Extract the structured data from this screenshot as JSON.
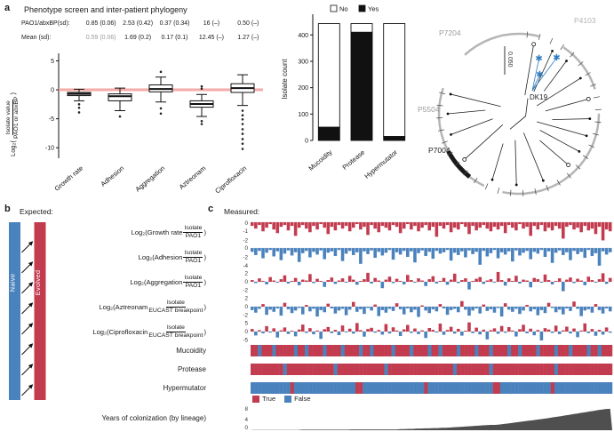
{
  "colors": {
    "red": "#c23b4f",
    "blue": "#4a82bd",
    "pink": "#f2a39e",
    "dark": "#4f4f4f"
  },
  "panels": {
    "a": {
      "label": "a",
      "title": "Phenotype screen and inter-patient phylogeny",
      "stats": {
        "rows": [
          {
            "label": "PAO1/abxBP(sd):",
            "values": [
              "0.85 (0.06)",
              "2.53 (0.42)",
              "0.37 (0.34)",
              "16 (–)",
              "0.50 (–)"
            ],
            "muted": []
          },
          {
            "label": "Mean (sd):",
            "values": [
              "0.59 (0.06)",
              "1.69 (0.2)",
              "0.17 (0.1)",
              "12.45 (–)",
              "1.27 (–)"
            ],
            "muted": [
              0
            ]
          }
        ]
      },
      "tree": {
        "labels": [
          {
            "text": "P7204",
            "color": "#9a9a9a"
          },
          {
            "text": "P4103",
            "color": "#b3b3b3"
          },
          {
            "text": "P5504",
            "color": "#9a9a9a"
          },
          {
            "text": "P7004",
            "color": "#1a1a1a"
          },
          {
            "text": "DK19",
            "color": "#1a1a1a"
          }
        ],
        "scale_label": "0.050",
        "star_color": "#2f7cc0"
      }
    },
    "b": {
      "label": "b",
      "heading": "Expected:",
      "naive": "Naive",
      "evolved": "Evolved",
      "rows": [
        {
          "type": "ratio",
          "prefix": "Log₂(Growth rate ",
          "num": "Isolate",
          "den": "PAO1",
          "suffix": ")"
        },
        {
          "type": "ratio",
          "prefix": "Log₂(Adhesion ",
          "num": "Isolate",
          "den": "PAO1",
          "suffix": ")"
        },
        {
          "type": "ratio",
          "prefix": "Log₂(Aggregation ",
          "num": "Isolate",
          "den": "PAO1",
          "suffix": ")"
        },
        {
          "type": "ratio",
          "prefix": "Log₂(Aztreonam ",
          "num": "Isolate",
          "den": "EUCAST breakpoint",
          "suffix": ")"
        },
        {
          "type": "ratio",
          "prefix": "Log₂(Ciprofloxacin ",
          "num": "Isolate",
          "den": "EUCAST breakpoint",
          "suffix": ")"
        },
        {
          "type": "plain",
          "text": "Mucoidity"
        },
        {
          "type": "plain",
          "text": "Protease"
        },
        {
          "type": "plain",
          "text": "Hypermutator"
        },
        {
          "type": "plain",
          "text": "Years of colonization (by lineage)"
        }
      ]
    },
    "c": {
      "label": "c",
      "heading": "Measured:",
      "legend": {
        "true_label": "True",
        "false_label": "False"
      }
    }
  },
  "chart_data": [
    {
      "name": "phenotype-boxplot",
      "type": "box",
      "ylabel": {
        "prefix": "Log₂(",
        "numerator": "Isolate value",
        "denominator": "PAO1 or abxBP",
        "suffix": ")"
      },
      "categories": [
        "Growth rate",
        "Adhesion",
        "Aggregation",
        "Aztreonam",
        "Ciprofloxacin"
      ],
      "yticks": [
        5,
        0,
        -5,
        -10
      ],
      "ylim": [
        -11.5,
        6.3
      ],
      "refline": {
        "y": 0,
        "color": "#f2a39e"
      },
      "boxes": [
        {
          "lo": -1.9,
          "q1": -1.0,
          "med": -0.7,
          "q3": -0.45,
          "hi": 0.1,
          "outliers": [
            -2.5,
            -3.1,
            -3.9
          ]
        },
        {
          "lo": -3.6,
          "q1": -1.9,
          "med": -1.1,
          "q3": -0.7,
          "hi": 0.3,
          "outliers": [
            -4.6
          ]
        },
        {
          "lo": -2.1,
          "q1": -0.35,
          "med": 0.15,
          "q3": 0.85,
          "hi": 2.2,
          "outliers": [
            -3.2,
            -4.1,
            3.1
          ]
        },
        {
          "lo": -4.6,
          "q1": -3.0,
          "med": -2.45,
          "q3": -1.9,
          "hi": -0.8,
          "outliers": [
            -5.4,
            -5.9,
            0.2,
            0.6
          ]
        },
        {
          "lo": -2.7,
          "q1": -0.45,
          "med": 0.3,
          "q3": 1.05,
          "hi": 2.6,
          "outliers": [
            -3.6,
            -4.4,
            -5.1,
            -5.9,
            -6.8,
            -7.6,
            -8.5,
            -9.3,
            -10.2
          ]
        }
      ]
    },
    {
      "name": "isolate-count",
      "type": "bar",
      "stacked": true,
      "ylabel": "Isolate count",
      "categories": [
        "Mucoidity",
        "Protease",
        "Hypermutator"
      ],
      "legend": [
        "No",
        "Yes"
      ],
      "colors": {
        "No": "#ffffff",
        "Yes": "#111111"
      },
      "yticks": [
        0,
        100,
        200,
        300,
        400
      ],
      "ylim": [
        0,
        465
      ],
      "series": [
        {
          "name": "Yes",
          "values": [
            50,
            410,
            15
          ]
        },
        {
          "name": "No",
          "values": [
            393,
            33,
            428
          ]
        }
      ]
    },
    {
      "name": "measured-tracks",
      "type": "bar-tracks",
      "tracks": [
        {
          "id": "growth-rate",
          "yticks": [
            0,
            -1,
            -2
          ],
          "ylim": [
            0.2,
            -2.35
          ],
          "color_mode": "fixed",
          "color": "#c23b4f",
          "values": [
            -0.4,
            -0.7,
            -0.3,
            -1.0,
            -0.6,
            -0.2,
            -0.8,
            -1.2,
            -0.5,
            -0.3,
            -0.9,
            -0.4,
            -1.5,
            -0.6,
            -0.3,
            -0.7,
            -1.1,
            -0.4,
            -0.8,
            -0.2,
            -0.6,
            -1.3,
            -0.5,
            -0.9,
            -0.3,
            -0.7,
            -0.4,
            -1.0,
            -0.6,
            -0.2,
            -0.8,
            -0.5,
            -1.4,
            -0.3,
            -0.7,
            -1.1,
            -0.4,
            -0.6,
            -0.9,
            -0.3,
            -0.5,
            -1.2,
            -0.7,
            -0.2,
            -0.8,
            -0.4,
            -1.0,
            -0.6,
            -0.3,
            -0.9,
            -0.5,
            -1.6,
            -0.4,
            -0.7,
            -0.3,
            -1.1,
            -0.6,
            -0.8,
            -0.2,
            -0.5,
            -1.3,
            -0.4,
            -0.9,
            -0.6,
            -0.3,
            -0.7,
            -1.0,
            -0.5,
            -0.8,
            -0.4,
            -1.2,
            -0.3,
            -0.6,
            -0.9,
            -0.2,
            -0.7,
            -0.5,
            -1.5,
            -0.4,
            -0.8,
            -0.3,
            -1.0,
            -0.6,
            -0.9,
            -0.4,
            -0.7,
            -1.8,
            -0.5,
            -0.3,
            -0.8,
            -0.6,
            -1.1,
            -0.4,
            -0.9,
            -0.7,
            -1.3,
            -0.5,
            -2.0,
            -0.8,
            -1.0
          ]
        },
        {
          "id": "adhesion",
          "yticks": [
            0,
            -2,
            -4
          ],
          "ylim": [
            0.6,
            -4.4
          ],
          "color_mode": "fixed",
          "color": "#4a82bd",
          "values": [
            -0.8,
            -1.5,
            -0.6,
            -2.2,
            -1.0,
            -0.4,
            -1.8,
            -0.7,
            -2.6,
            -1.2,
            -0.5,
            -1.6,
            -0.9,
            -3.0,
            -1.1,
            -0.6,
            -2.0,
            -0.8,
            -1.4,
            -0.5,
            -2.4,
            -1.0,
            -0.7,
            -1.7,
            -0.4,
            -2.8,
            -1.2,
            -0.6,
            -1.5,
            -0.9,
            -3.4,
            -0.7,
            -1.3,
            -0.5,
            -2.1,
            -0.8,
            -1.6,
            -1.0,
            -0.4,
            -2.5,
            -0.9,
            -1.4,
            -0.6,
            -1.9,
            -0.7,
            -3.1,
            -1.1,
            -0.5,
            -1.7,
            -0.8,
            -2.3,
            -0.6,
            -1.2,
            -0.9,
            -0.4,
            -2.7,
            -1.0,
            -1.5,
            -0.7,
            -2.0,
            -0.5,
            -1.3,
            -0.8,
            -3.6,
            -0.6,
            -1.8,
            -1.1,
            -0.4,
            -2.2,
            -0.9,
            -1.4,
            -0.7,
            -2.9,
            -0.5,
            -1.6,
            -1.0,
            -0.6,
            -2.4,
            -0.8,
            -1.2,
            -0.4,
            -1.9,
            -0.7,
            -3.2,
            -1.0,
            -0.5,
            -1.5,
            -0.9,
            -2.6,
            -0.6,
            -1.3,
            -0.8,
            -2.1,
            -0.4,
            -1.7,
            -1.1,
            -3.8,
            -0.7,
            -1.4,
            -0.9
          ]
        },
        {
          "id": "aggregation",
          "yticks": [
            2,
            0,
            -2
          ],
          "ylim": [
            2.7,
            -2.7
          ],
          "color_mode": "sign",
          "values": [
            0.4,
            -0.3,
            0.8,
            0.2,
            -0.6,
            1.1,
            0.3,
            -0.2,
            0.6,
            1.5,
            -0.4,
            0.2,
            0.9,
            -0.8,
            0.5,
            0.3,
            1.8,
            -0.3,
            0.7,
            0.2,
            -1.2,
            0.4,
            1.0,
            -0.5,
            0.3,
            0.8,
            -0.2,
            1.4,
            0.5,
            -0.7,
            0.2,
            0.6,
            2.1,
            -0.4,
            0.9,
            0.3,
            -1.5,
            0.5,
            1.2,
            -0.3,
            0.7,
            0.2,
            -0.6,
            1.6,
            0.4,
            -0.2,
            0.8,
            0.3,
            -1.0,
            0.6,
            1.3,
            -0.4,
            0.2,
            0.9,
            -0.7,
            0.5,
            1.9,
            -0.3,
            0.4,
            0.8,
            -1.8,
            0.2,
            0.7,
            1.1,
            -0.5,
            0.3,
            0.6,
            -0.2,
            2.3,
            0.4,
            -0.9,
            0.8,
            0.2,
            1.4,
            -0.4,
            0.5,
            0.3,
            -1.3,
            0.9,
            0.6,
            -0.2,
            1.7,
            0.4,
            -0.6,
            0.2,
            0.8,
            -2.2,
            0.5,
            1.0,
            -0.3,
            0.7,
            0.3,
            -0.8,
            1.2,
            0.4,
            -0.2,
            0.6,
            2.0,
            -0.5,
            0.9
          ]
        },
        {
          "id": "aztreonam",
          "yticks": [
            2,
            0,
            -2
          ],
          "ylim": [
            2.7,
            -2.7
          ],
          "color_mode": "sign",
          "values": [
            -0.8,
            -1.4,
            -0.5,
            0.6,
            -1.9,
            -0.7,
            -1.2,
            -0.4,
            -2.1,
            0.9,
            -0.6,
            -1.5,
            -0.9,
            -0.3,
            -1.8,
            0.4,
            -1.1,
            -0.5,
            -2.3,
            -0.8,
            -1.3,
            0.7,
            -0.4,
            -1.6,
            -0.9,
            -0.5,
            -2.0,
            -0.7,
            1.1,
            -1.2,
            -0.6,
            -1.7,
            -0.3,
            -0.9,
            0.5,
            -2.2,
            -0.8,
            -1.4,
            -0.5,
            -1.0,
            0.8,
            -0.6,
            -1.8,
            -0.4,
            -1.3,
            -0.7,
            -2.4,
            0.3,
            -0.9,
            -1.5,
            -0.6,
            -1.1,
            0.6,
            -0.4,
            -1.9,
            -0.8,
            -0.5,
            -1.3,
            1.3,
            -0.7,
            -2.1,
            -0.9,
            -0.4,
            -1.6,
            0.5,
            -1.0,
            -0.6,
            -1.4,
            -0.3,
            -2.3,
            0.8,
            -0.7,
            -1.2,
            -0.5,
            -1.7,
            -0.9,
            0.4,
            -1.1,
            -0.6,
            -2.0,
            -0.8,
            -1.5,
            0.9,
            -0.3,
            -1.3,
            -0.7,
            -1.8,
            -0.4,
            -1.0,
            1.2,
            -0.5,
            -2.2,
            -0.9,
            -0.6,
            -1.4,
            0.6,
            -0.8,
            -1.6,
            -0.4,
            -1.1
          ]
        },
        {
          "id": "ciprofloxacin",
          "yticks": [
            5,
            0,
            -5
          ],
          "ylim": [
            6.8,
            -6.8
          ],
          "color_mode": "sign",
          "values": [
            1.5,
            -2.3,
            0.8,
            -1.0,
            3.2,
            -0.6,
            1.9,
            -3.5,
            0.7,
            2.4,
            -1.4,
            0.5,
            -2.8,
            1.2,
            4.1,
            -0.8,
            2.0,
            -1.6,
            0.6,
            -4.3,
            1.4,
            2.7,
            -0.9,
            1.0,
            -2.1,
            3.6,
            -0.5,
            1.7,
            -1.2,
            5.0,
            0.8,
            -3.0,
            1.5,
            2.2,
            -0.7,
            0.9,
            -1.8,
            4.4,
            -1.1,
            2.5,
            0.6,
            -2.6,
            1.3,
            3.9,
            -0.8,
            1.8,
            -1.5,
            0.7,
            -3.8,
            2.1,
            1.0,
            -0.6,
            4.7,
            -1.9,
            0.9,
            2.8,
            -1.2,
            1.6,
            -2.4,
            0.5,
            5.4,
            -0.9,
            2.3,
            -1.7,
            1.1,
            -4.6,
            0.8,
            1.9,
            -1.3,
            3.3,
            -0.7,
            2.6,
            0.6,
            -2.9,
            1.4,
            4.0,
            -1.0,
            1.7,
            -2.2,
            0.9,
            -5.2,
            2.0,
            1.2,
            -0.8,
            3.5,
            -1.5,
            0.7,
            2.9,
            -1.1,
            1.8,
            -3.3,
            0.6,
            4.8,
            -0.9,
            1.5,
            -2.5,
            1.0,
            -1.8,
            2.4,
            -0.7
          ]
        }
      ]
    },
    {
      "name": "phenotype-bands",
      "type": "heatmap",
      "true_color": "#c23b4f",
      "false_color": "#4a82bd",
      "rows": [
        {
          "id": "mucoidity",
          "pattern": "1101110111110110111101111011110110111110111101111011011110111101110111101101111011110111011110110111"
        },
        {
          "id": "protease",
          "pattern": "1111111110111111111111101111111111111011111111111111111101111111110111111111111111110111111111111111"
        },
        {
          "id": "hypermutator",
          "pattern": "0000000000010000000000000000011000000000000000001000000000000000000110000000000000010000000000000000"
        }
      ]
    },
    {
      "name": "years-of-colonization",
      "type": "area",
      "yticks": [
        8,
        4,
        0
      ],
      "ylim": [
        0,
        8.6
      ],
      "color": "#4f4f4f",
      "values": [
        0.1,
        0.1,
        0.1,
        0.1,
        0.1,
        0.1,
        0.1,
        0.1,
        0.1,
        0.1,
        0.1,
        0.1,
        0.2,
        0.2,
        0.2,
        0.2,
        0.2,
        0.2,
        0.2,
        0.2,
        0.2,
        0.2,
        0.2,
        0.2,
        0.3,
        0.3,
        0.3,
        0.3,
        0.3,
        0.3,
        0.3,
        0.3,
        0.3,
        0.3,
        0.3,
        0.3,
        0.4,
        0.4,
        0.5,
        0.5,
        0.6,
        0.6,
        0.7,
        0.7,
        0.8,
        0.8,
        0.9,
        0.9,
        1.0,
        1.1,
        1.2,
        1.3,
        1.4,
        1.5,
        1.6,
        1.7,
        1.8,
        1.9,
        2.0,
        2.0,
        2.1,
        2.3,
        2.5,
        2.7,
        2.9,
        3.1,
        3.3,
        3.5,
        3.7,
        3.9,
        4.1,
        4.3,
        4.5,
        4.8,
        5.0,
        5.2,
        5.5,
        5.7,
        6.0,
        6.2,
        6.5,
        6.7,
        7.0,
        7.2,
        7.5,
        7.7,
        7.9,
        8.0
      ]
    }
  ]
}
